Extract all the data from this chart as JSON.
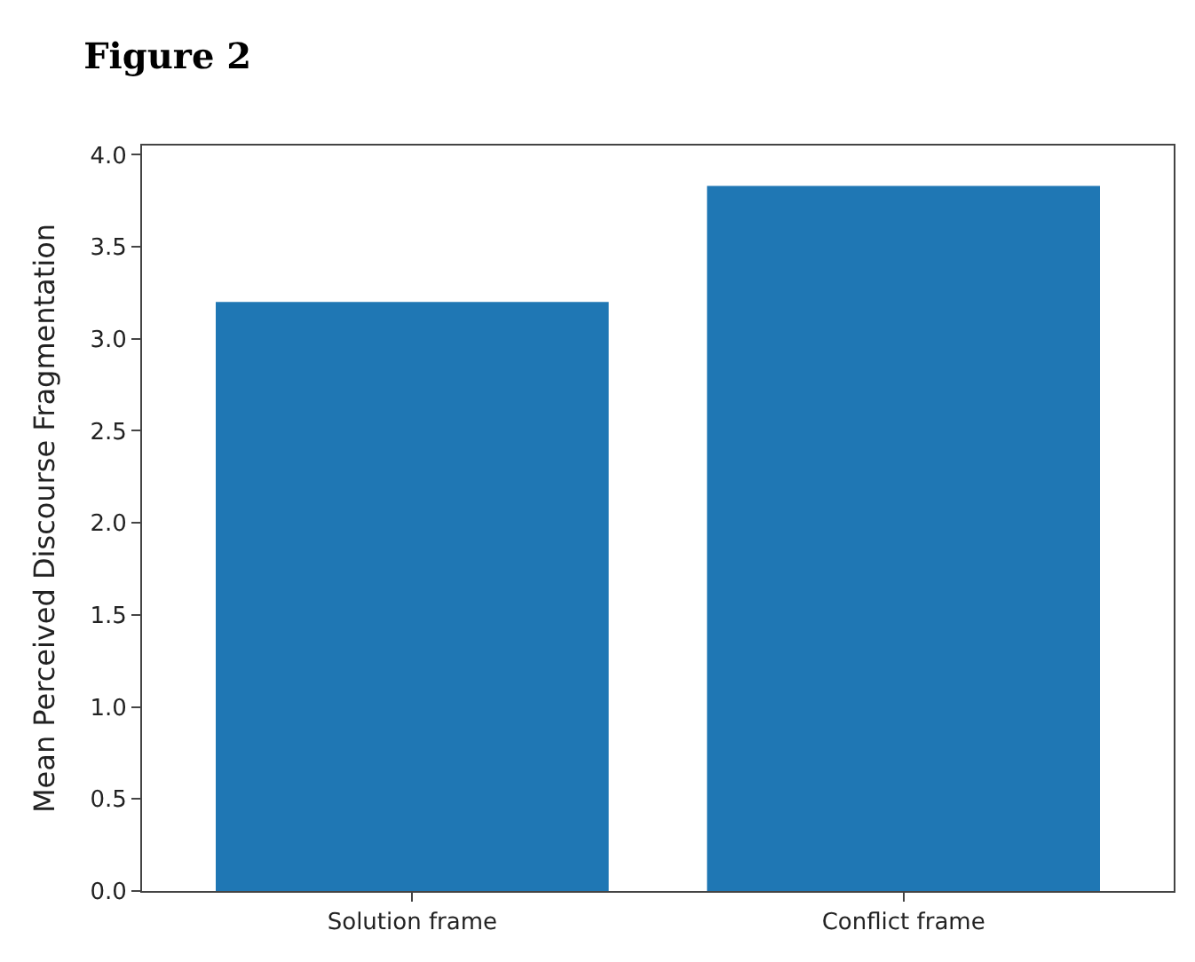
{
  "chart_data": {
    "type": "bar",
    "title": "Figure 2",
    "ylabel": "Mean Perceived Discourse Fragmentation",
    "categories": [
      "Solution frame",
      "Conflict frame"
    ],
    "values": [
      3.2,
      3.83
    ],
    "color": "#1f77b4",
    "ylim": [
      0,
      4.05
    ],
    "yticks": [
      {
        "value": 0,
        "label": "0.0"
      },
      {
        "value": 0.5,
        "label": "0.5"
      },
      {
        "value": 1,
        "label": "1.0"
      },
      {
        "value": 1.5,
        "label": "1.5"
      },
      {
        "value": 2,
        "label": "2.0"
      },
      {
        "value": 2.5,
        "label": "2.5"
      },
      {
        "value": 3,
        "label": "3.0"
      },
      {
        "value": 3.5,
        "label": "3.5"
      },
      {
        "value": 4,
        "label": "4.0"
      }
    ],
    "legend": false
  }
}
